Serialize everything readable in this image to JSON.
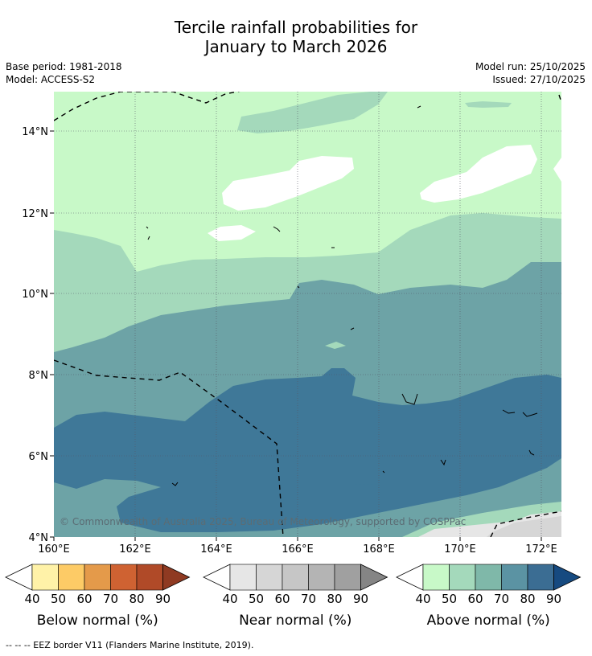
{
  "title_line1": "Tercile rainfall probabilities for",
  "title_line2": "January to March 2026",
  "base_period": "Base period: 1981-2018",
  "model": "Model: ACCESS-S2",
  "model_run": "Model run: 25/10/2025",
  "issued": "Issued: 27/10/2025",
  "map": {
    "lon_ticks": [
      "160°E",
      "162°E",
      "164°E",
      "166°E",
      "168°E",
      "170°E",
      "172°E"
    ],
    "lat_ticks": [
      "14°N",
      "12°N",
      "10°N",
      "8°N",
      "6°N",
      "4°N"
    ],
    "copyright": "© Commonwealth of Australia 2025, Bureau of Meteorology, supported by COSPPac"
  },
  "colorbars": [
    {
      "title": "Below normal (%)",
      "labels": [
        "40",
        "50",
        "60",
        "70",
        "80",
        "90"
      ],
      "colors": [
        "#fff2a8",
        "#fdcb66",
        "#e49a4a",
        "#cf6232",
        "#b04a28",
        "#8f3a22"
      ]
    },
    {
      "title": "Near normal (%)",
      "labels": [
        "40",
        "50",
        "60",
        "70",
        "80",
        "90"
      ],
      "colors": [
        "#e6e6e6",
        "#d6d6d6",
        "#c6c6c6",
        "#b4b4b4",
        "#a0a0a0",
        "#858585"
      ]
    },
    {
      "title": "Above normal (%)",
      "labels": [
        "40",
        "50",
        "60",
        "70",
        "80",
        "90"
      ],
      "colors": [
        "#c8f9c8",
        "#a4d9bb",
        "#7fb8a9",
        "#5b93a3",
        "#3b6d93",
        "#164a80"
      ]
    }
  ],
  "footer": "--  --  -- EEZ border V11 (Flanders Marine Institute, 2019)."
}
